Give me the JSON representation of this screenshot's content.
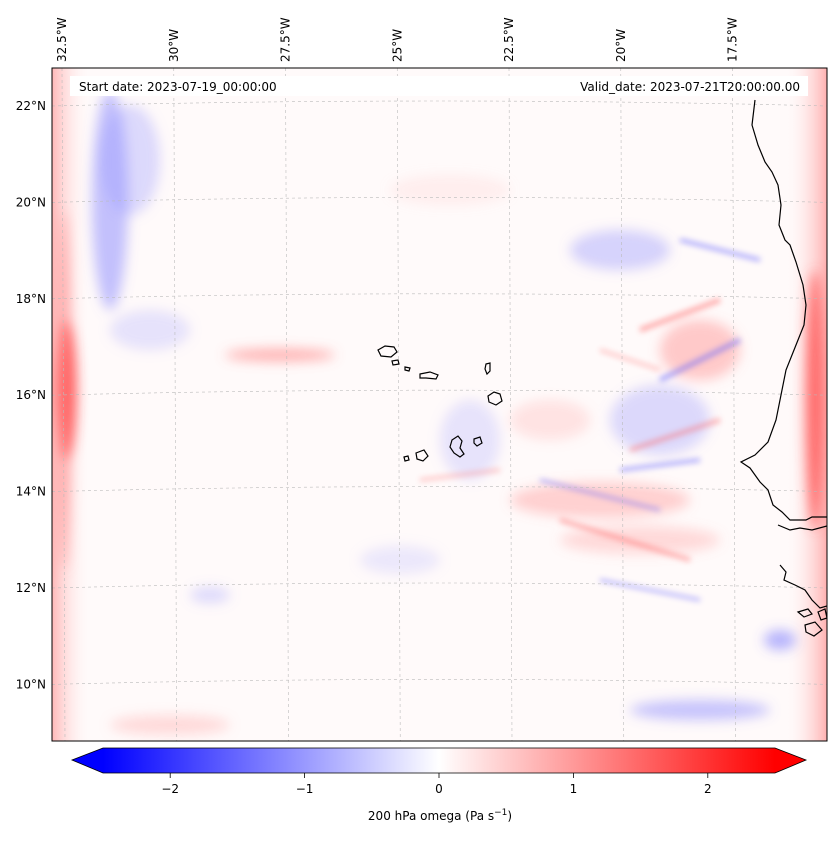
{
  "map": {
    "start_date": "Start date: 2023-07-19_00:00:00",
    "valid_date": "Valid_date: 2023-07-21T20:00:00.00",
    "lon_labels": [
      {
        "text": "32.5°W",
        "lon": -32.5
      },
      {
        "text": "30°W",
        "lon": -30.0
      },
      {
        "text": "27.5°W",
        "lon": -27.5
      },
      {
        "text": "25°W",
        "lon": -25.0
      },
      {
        "text": "22.5°W",
        "lon": -22.5
      },
      {
        "text": "20°W",
        "lon": -20.0
      },
      {
        "text": "17.5°W",
        "lon": -17.5
      }
    ],
    "lat_labels": [
      {
        "text": "22°N",
        "lat": 22
      },
      {
        "text": "20°N",
        "lat": 20
      },
      {
        "text": "18°N",
        "lat": 18
      },
      {
        "text": "16°N",
        "lat": 16
      },
      {
        "text": "14°N",
        "lat": 14
      },
      {
        "text": "12°N",
        "lat": 12
      },
      {
        "text": "10°N",
        "lat": 10
      }
    ],
    "colors": {
      "negative": "#0000ff",
      "zero": "#ffffff",
      "positive": "#ff0000",
      "coastline": "#000000",
      "gridline": "#bbbbbb"
    }
  },
  "colorbar": {
    "label_main": "200 hPa omega (Pa s",
    "label_exp": "−1",
    "label_end": ")",
    "vmin": -2.75,
    "vmax": 2.75,
    "ticks": [
      {
        "value": -2,
        "text": "−2"
      },
      {
        "value": -1,
        "text": "−1"
      },
      {
        "value": 0,
        "text": "0"
      },
      {
        "value": 1,
        "text": "1"
      },
      {
        "value": 2,
        "text": "2"
      }
    ]
  }
}
